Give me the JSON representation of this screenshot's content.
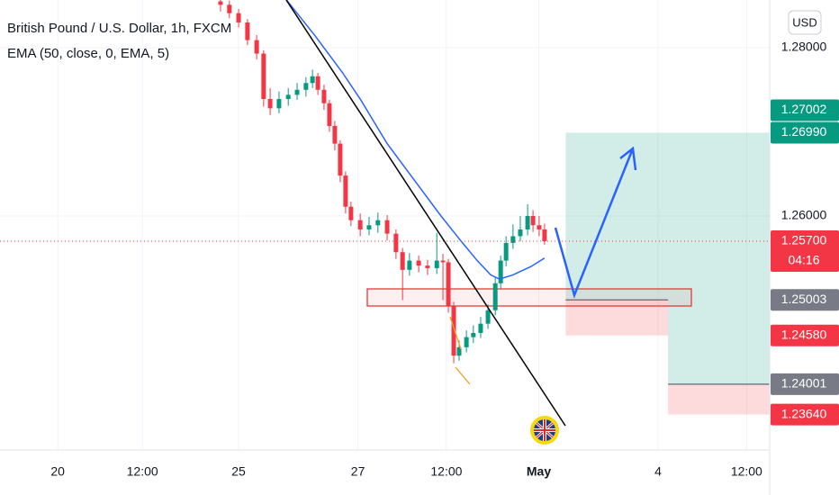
{
  "chart_data": {
    "type": "candlestick",
    "title": "British Pound / U.S. Dollar, 1h, FXCM",
    "currency": "USD",
    "x": [
      57.3,
      59.6,
      62,
      64.3,
      66.7,
      68.5,
      70.2,
      72.5,
      74.9,
      77.2,
      79.5,
      81.2,
      82.6,
      84.2,
      85.6,
      87,
      88.4,
      89.8,
      91.2,
      93.6,
      95.9,
      98.2,
      100.6,
      102.9,
      104.6,
      106.4,
      108.8,
      111.1,
      113.5,
      115.1,
      116.5,
      117.9,
      119.3,
      121.2,
      123,
      124.9,
      126.8,
      128.7,
      130.1,
      131.5,
      133.3,
      135.2,
      137.1,
      138.5,
      140.1,
      141.5
    ],
    "open": [
      1.2855,
      1.2851,
      1.2841,
      1.283,
      1.2809,
      1.2793,
      1.2739,
      1.2728,
      1.2739,
      1.2744,
      1.275,
      1.2758,
      1.2766,
      1.275,
      1.2734,
      1.2707,
      1.2686,
      1.2648,
      1.2611,
      1.2595,
      1.2584,
      1.2589,
      1.2595,
      1.2579,
      1.2557,
      1.2536,
      1.2547,
      1.2541,
      1.2538,
      1.2547,
      1.2545,
      1.2493,
      1.2434,
      1.2444,
      1.2456,
      1.2461,
      1.2472,
      1.2488,
      1.252,
      1.2547,
      1.2568,
      1.2576,
      1.2584,
      1.26,
      1.2589,
      1.2584
    ],
    "high": [
      1.2862,
      1.2856,
      1.2846,
      1.2834,
      1.2815,
      1.2797,
      1.2752,
      1.2748,
      1.2752,
      1.2758,
      1.2765,
      1.2774,
      1.277,
      1.2756,
      1.2738,
      1.2713,
      1.269,
      1.2653,
      1.2617,
      1.2603,
      1.2599,
      1.2604,
      1.2601,
      1.2584,
      1.2562,
      1.2556,
      1.2553,
      1.2548,
      1.258,
      1.2555,
      1.2549,
      1.2498,
      1.2452,
      1.2464,
      1.247,
      1.248,
      1.2495,
      1.2527,
      1.2553,
      1.2576,
      1.259,
      1.26,
      1.2614,
      1.2607,
      1.26,
      1.2591
    ],
    "low": [
      1.2843,
      1.2835,
      1.2824,
      1.2803,
      1.2786,
      1.273,
      1.272,
      1.2722,
      1.2731,
      1.2738,
      1.2742,
      1.2752,
      1.2744,
      1.2726,
      1.27,
      1.2678,
      1.264,
      1.2603,
      1.2588,
      1.2576,
      1.2577,
      1.258,
      1.2571,
      1.2549,
      1.25,
      1.2529,
      1.2533,
      1.253,
      1.2531,
      1.25,
      1.2485,
      1.2425,
      1.2428,
      1.2438,
      1.2449,
      1.2455,
      1.2466,
      1.2482,
      1.2514,
      1.254,
      1.2561,
      1.257,
      1.2577,
      1.2581,
      1.2576,
      1.2566
    ],
    "close": [
      1.2851,
      1.2841,
      1.283,
      1.2809,
      1.2793,
      1.2739,
      1.2728,
      1.2739,
      1.2744,
      1.275,
      1.2758,
      1.2766,
      1.275,
      1.2734,
      1.2707,
      1.2686,
      1.2648,
      1.2611,
      1.2595,
      1.2584,
      1.2589,
      1.2595,
      1.2579,
      1.2557,
      1.2536,
      1.2547,
      1.2541,
      1.2538,
      1.2547,
      1.2545,
      1.2493,
      1.2434,
      1.2444,
      1.2456,
      1.2461,
      1.2472,
      1.2488,
      1.252,
      1.2547,
      1.2568,
      1.2576,
      1.2584,
      1.26,
      1.2589,
      1.2584,
      1.257
    ],
    "up_color": "#089981",
    "down_color": "#f23645",
    "series": [
      {
        "name": "EMA (50, close, 0, EMA, 5)",
        "color": "#2962ff",
        "x": [
          74.4,
          81.9,
          88.9,
          93.6,
          100.6,
          107.6,
          114.6,
          119.3,
          124,
          127.5,
          129.8,
          133.3,
          138,
          141.5
        ],
        "values": [
          1.2857,
          1.2814,
          1.2771,
          1.2739,
          1.2686,
          1.2643,
          1.26,
          1.2573,
          1.2547,
          1.253,
          1.2525,
          1.253,
          1.254,
          1.255
        ]
      }
    ],
    "xlim": [
      0,
      200
    ],
    "ylim": [
      1.23219,
      1.28567
    ],
    "xticks": [
      {
        "value": 15,
        "label": "20"
      },
      {
        "value": 37,
        "label": "12:00"
      },
      {
        "value": 62,
        "label": "25"
      },
      {
        "value": 93,
        "label": "27"
      },
      {
        "value": 116,
        "label": "12:00"
      },
      {
        "value": 140,
        "label": "May",
        "bold": true
      },
      {
        "value": 171,
        "label": "4"
      },
      {
        "value": 194,
        "label": "12:00"
      }
    ],
    "yticks": [
      {
        "value": 1.28,
        "label": "1.28000"
      },
      {
        "value": 1.26,
        "label": "1.26000"
      }
    ],
    "grid": true,
    "positions": [
      {
        "x": [
          147,
          173.6
        ],
        "entry": 1.25003,
        "target": 1.2699,
        "stop": 1.2458
      },
      {
        "x": [
          173.6,
          200
        ],
        "entry": 1.24001,
        "target": 1.2699,
        "stop": 1.2364
      }
    ],
    "price_labels": [
      {
        "value": 1.27002,
        "label": "1.27002",
        "color": "#089981"
      },
      {
        "value": 1.2699,
        "label": "1.26990",
        "color": "#089981"
      },
      {
        "value": 1.257,
        "label": "1.25700",
        "countdown": "04:16",
        "color": "#f23645"
      },
      {
        "value": 1.25003,
        "label": "1.25003",
        "color": "#787b86"
      },
      {
        "value": 1.2458,
        "label": "1.24580",
        "color": "#f23645"
      },
      {
        "value": 1.24001,
        "label": "1.24001",
        "color": "#787b86"
      },
      {
        "value": 1.2364,
        "label": "1.23640",
        "color": "#f23645"
      }
    ]
  }
}
